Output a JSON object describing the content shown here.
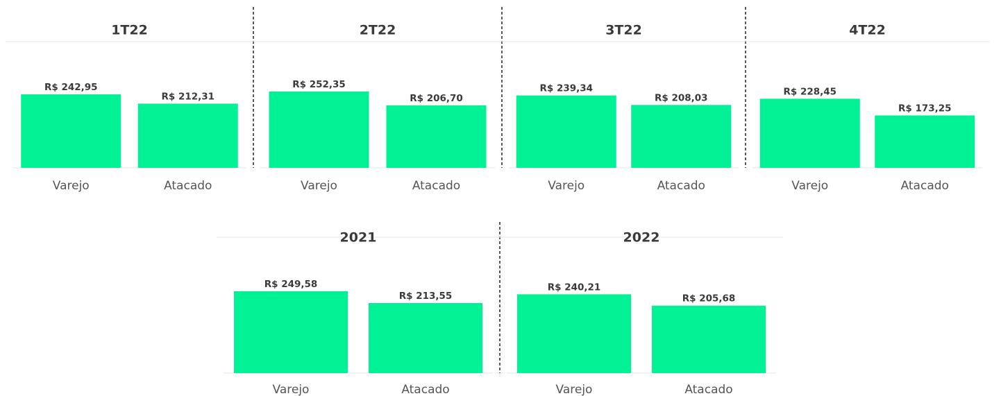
{
  "chart_data": [
    {
      "type": "bar",
      "title": "1T22",
      "categories": [
        "Varejo",
        "Atacado"
      ],
      "values": [
        242.95,
        212.31
      ],
      "value_labels": [
        "R$ 242,95",
        "R$ 212,31"
      ],
      "color": "#00f294"
    },
    {
      "type": "bar",
      "title": "2T22",
      "categories": [
        "Varejo",
        "Atacado"
      ],
      "values": [
        252.35,
        206.7
      ],
      "value_labels": [
        "R$ 252,35",
        "R$ 206,70"
      ],
      "color": "#00f294"
    },
    {
      "type": "bar",
      "title": "3T22",
      "categories": [
        "Varejo",
        "Atacado"
      ],
      "values": [
        239.34,
        208.03
      ],
      "value_labels": [
        "R$ 239,34",
        "R$ 208,03"
      ],
      "color": "#00f294"
    },
    {
      "type": "bar",
      "title": "4T22",
      "categories": [
        "Varejo",
        "Atacado"
      ],
      "values": [
        228.45,
        173.25
      ],
      "value_labels": [
        "R$ 228,45",
        "R$ 173,25"
      ],
      "color": "#00f294"
    },
    {
      "type": "bar",
      "title": "2021",
      "categories": [
        "Varejo",
        "Atacado"
      ],
      "values": [
        249.58,
        213.55
      ],
      "value_labels": [
        "R$ 249,58",
        "R$ 213,55"
      ],
      "color": "#00f294"
    },
    {
      "type": "bar",
      "title": "2022",
      "categories": [
        "Varejo",
        "Atacado"
      ],
      "values": [
        240.21,
        205.68
      ],
      "value_labels": [
        "R$ 240,21",
        "R$ 205,68"
      ],
      "color": "#00f294"
    }
  ]
}
